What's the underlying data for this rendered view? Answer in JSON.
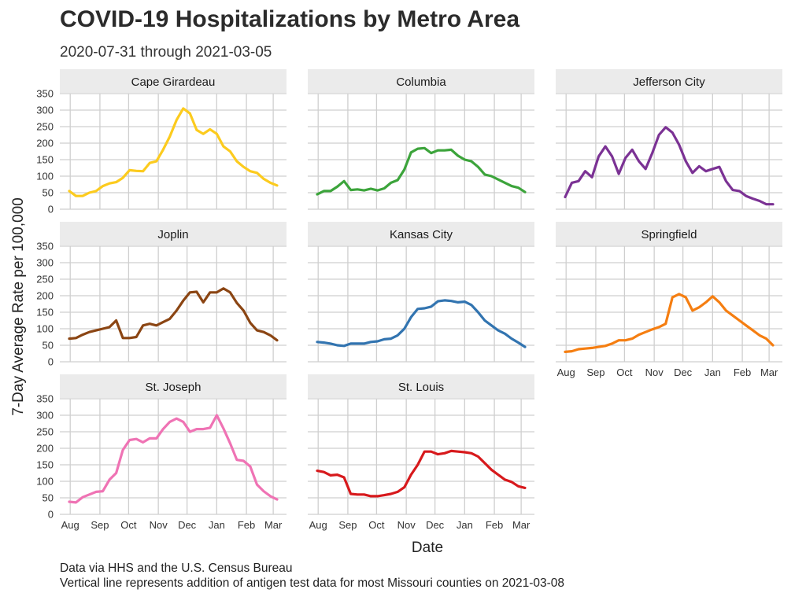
{
  "title": "COVID-19 Hospitalizations by Metro Area",
  "subtitle": "2020-07-31 through 2021-03-05",
  "caption": {
    "line1": "Data via HHS and the U.S. Census Bureau",
    "line2": "Vertical line represents addition of antigen test data for most Missouri counties on 2021-03-08"
  },
  "chart_data": {
    "type": "line",
    "layout": "small-multiples",
    "xlabel": "Date",
    "ylabel": "7-Day Average Rate per 100,000",
    "x": [
      "2020-07-31",
      "2020-08-07",
      "2020-08-14",
      "2020-08-21",
      "2020-08-28",
      "2020-09-04",
      "2020-09-11",
      "2020-09-18",
      "2020-09-25",
      "2020-10-02",
      "2020-10-09",
      "2020-10-16",
      "2020-10-23",
      "2020-10-30",
      "2020-11-06",
      "2020-11-13",
      "2020-11-20",
      "2020-11-27",
      "2020-12-04",
      "2020-12-11",
      "2020-12-18",
      "2020-12-25",
      "2021-01-01",
      "2021-01-08",
      "2021-01-15",
      "2021-01-22",
      "2021-01-29",
      "2021-02-05",
      "2021-02-12",
      "2021-02-19",
      "2021-02-26",
      "2021-03-05"
    ],
    "x_ticks": [
      "Aug",
      "Sep",
      "Oct",
      "Nov",
      "Dec",
      "Jan",
      "Feb",
      "Mar"
    ],
    "y_ticks": [
      0,
      50,
      100,
      150,
      200,
      250,
      300,
      350
    ],
    "ylim": [
      0,
      350
    ],
    "grid": true,
    "series": [
      {
        "name": "Cape Girardeau",
        "color": "#FCCB1E",
        "values": [
          55,
          40,
          40,
          50,
          55,
          70,
          78,
          82,
          95,
          118,
          116,
          115,
          140,
          145,
          180,
          220,
          270,
          305,
          290,
          240,
          228,
          242,
          228,
          190,
          175,
          145,
          128,
          115,
          110,
          92,
          80,
          72
        ]
      },
      {
        "name": "Columbia",
        "color": "#3CA43B",
        "values": [
          45,
          55,
          55,
          68,
          85,
          58,
          60,
          57,
          62,
          57,
          63,
          80,
          88,
          120,
          172,
          183,
          185,
          170,
          178,
          178,
          180,
          162,
          150,
          145,
          128,
          105,
          100,
          90,
          80,
          70,
          65,
          52
        ]
      },
      {
        "name": "Jefferson City",
        "color": "#7B3294",
        "values": [
          37,
          80,
          85,
          115,
          97,
          160,
          190,
          160,
          107,
          155,
          180,
          145,
          122,
          170,
          225,
          248,
          232,
          195,
          145,
          110,
          130,
          115,
          122,
          128,
          85,
          58,
          55,
          40,
          32,
          25,
          15,
          15
        ]
      },
      {
        "name": "Joplin",
        "color": "#8B4513",
        "values": [
          70,
          72,
          82,
          90,
          95,
          100,
          105,
          125,
          72,
          72,
          75,
          110,
          115,
          110,
          120,
          130,
          155,
          185,
          210,
          212,
          180,
          210,
          210,
          222,
          210,
          178,
          155,
          118,
          95,
          90,
          80,
          65
        ]
      },
      {
        "name": "Kansas City",
        "color": "#3274B0",
        "values": [
          60,
          58,
          55,
          50,
          48,
          55,
          55,
          55,
          60,
          62,
          68,
          70,
          80,
          100,
          135,
          160,
          162,
          167,
          183,
          186,
          184,
          180,
          182,
          172,
          150,
          125,
          110,
          95,
          85,
          70,
          58,
          45
        ]
      },
      {
        "name": "Springfield",
        "color": "#F57E11",
        "values": [
          30,
          32,
          38,
          40,
          42,
          45,
          48,
          55,
          65,
          65,
          70,
          82,
          90,
          98,
          105,
          115,
          195,
          205,
          195,
          155,
          165,
          180,
          198,
          180,
          155,
          140,
          125,
          110,
          95,
          80,
          70,
          50
        ]
      },
      {
        "name": "St. Joseph",
        "color": "#EF73B4",
        "values": [
          38,
          36,
          52,
          60,
          68,
          70,
          105,
          125,
          195,
          225,
          228,
          218,
          230,
          230,
          258,
          280,
          290,
          280,
          250,
          258,
          258,
          262,
          300,
          260,
          215,
          165,
          162,
          145,
          90,
          70,
          55,
          45
        ]
      },
      {
        "name": "St. Louis",
        "color": "#D7191C",
        "values": [
          132,
          128,
          118,
          120,
          112,
          62,
          60,
          60,
          55,
          55,
          58,
          62,
          68,
          82,
          120,
          150,
          190,
          190,
          182,
          185,
          192,
          190,
          188,
          185,
          175,
          155,
          135,
          120,
          105,
          98,
          85,
          80
        ]
      }
    ]
  }
}
